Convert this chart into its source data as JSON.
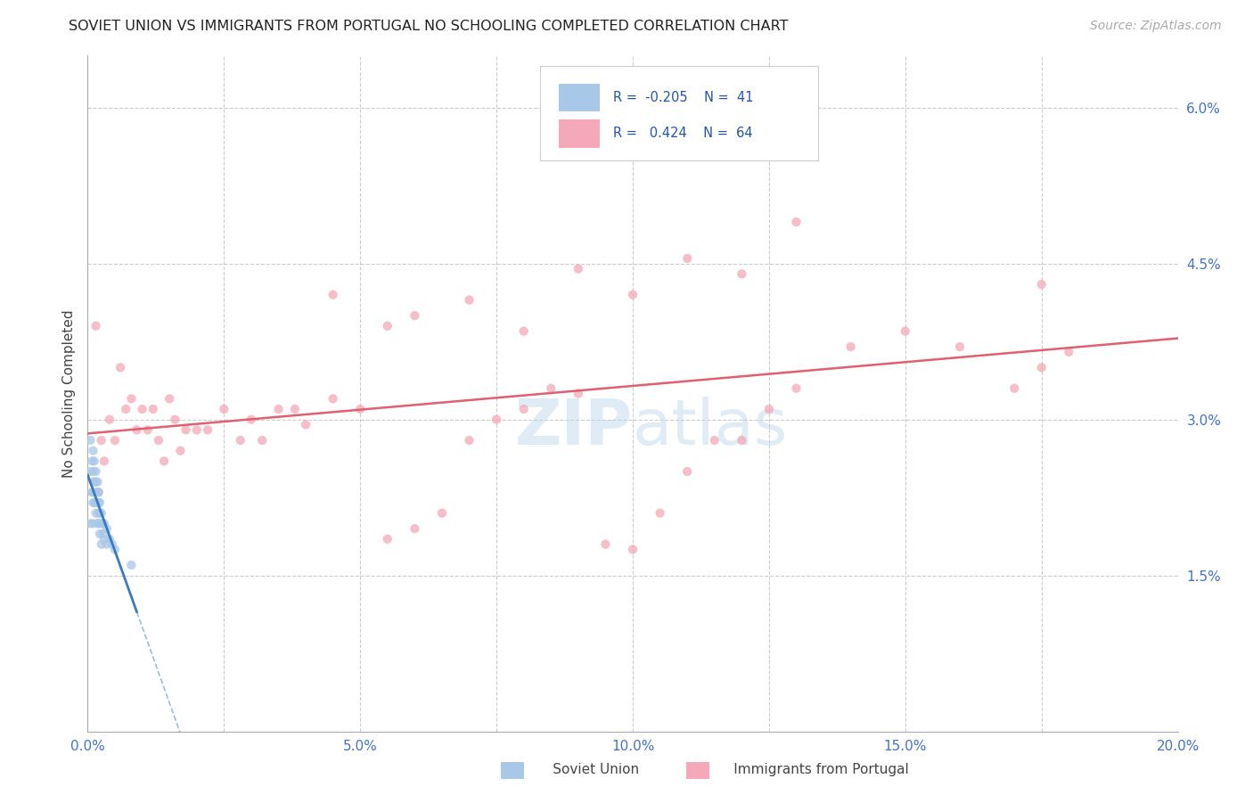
{
  "title": "SOVIET UNION VS IMMIGRANTS FROM PORTUGAL NO SCHOOLING COMPLETED CORRELATION CHART",
  "source": "Source: ZipAtlas.com",
  "ylabel": "No Schooling Completed",
  "xlim": [
    0.0,
    0.2
  ],
  "ylim": [
    0.0,
    0.065
  ],
  "legend_R1": "-0.205",
  "legend_N1": "41",
  "legend_R2": "0.424",
  "legend_N2": "64",
  "color_soviet": "#a8c8e8",
  "color_portugal": "#f4a8b8",
  "color_soviet_line": "#3a7abf",
  "color_portugal_line": "#e06070",
  "scatter_alpha": 0.75,
  "scatter_size": 55,
  "soviet_x": [
    0.0005,
    0.0005,
    0.0005,
    0.0008,
    0.0008,
    0.001,
    0.001,
    0.001,
    0.001,
    0.001,
    0.0012,
    0.0012,
    0.0012,
    0.0015,
    0.0015,
    0.0015,
    0.0015,
    0.0015,
    0.0018,
    0.0018,
    0.0018,
    0.002,
    0.002,
    0.002,
    0.002,
    0.0022,
    0.0022,
    0.0022,
    0.0025,
    0.0025,
    0.0025,
    0.0028,
    0.0028,
    0.003,
    0.003,
    0.0035,
    0.0035,
    0.004,
    0.0045,
    0.005,
    0.008
  ],
  "soviet_y": [
    0.028,
    0.025,
    0.02,
    0.026,
    0.023,
    0.027,
    0.025,
    0.023,
    0.022,
    0.02,
    0.026,
    0.024,
    0.022,
    0.025,
    0.024,
    0.023,
    0.022,
    0.021,
    0.024,
    0.022,
    0.02,
    0.023,
    0.022,
    0.021,
    0.02,
    0.022,
    0.021,
    0.019,
    0.021,
    0.02,
    0.018,
    0.02,
    0.019,
    0.02,
    0.0185,
    0.0195,
    0.018,
    0.0185,
    0.018,
    0.0175,
    0.016
  ],
  "portugal_x": [
    0.001,
    0.0015,
    0.002,
    0.0025,
    0.003,
    0.004,
    0.005,
    0.006,
    0.007,
    0.008,
    0.009,
    0.01,
    0.011,
    0.012,
    0.013,
    0.014,
    0.015,
    0.016,
    0.017,
    0.018,
    0.02,
    0.022,
    0.025,
    0.028,
    0.03,
    0.032,
    0.035,
    0.038,
    0.04,
    0.045,
    0.05,
    0.055,
    0.06,
    0.065,
    0.07,
    0.075,
    0.08,
    0.085,
    0.09,
    0.095,
    0.1,
    0.105,
    0.11,
    0.115,
    0.12,
    0.125,
    0.13,
    0.14,
    0.15,
    0.16,
    0.17,
    0.175,
    0.18,
    0.06,
    0.07,
    0.08,
    0.09,
    0.1,
    0.11,
    0.13,
    0.045,
    0.055,
    0.12,
    0.175
  ],
  "portugal_y": [
    0.024,
    0.039,
    0.023,
    0.028,
    0.026,
    0.03,
    0.028,
    0.035,
    0.031,
    0.032,
    0.029,
    0.031,
    0.029,
    0.031,
    0.028,
    0.026,
    0.032,
    0.03,
    0.027,
    0.029,
    0.029,
    0.029,
    0.031,
    0.028,
    0.03,
    0.028,
    0.031,
    0.031,
    0.0295,
    0.032,
    0.031,
    0.0185,
    0.0195,
    0.021,
    0.028,
    0.03,
    0.031,
    0.033,
    0.0325,
    0.018,
    0.0175,
    0.021,
    0.025,
    0.028,
    0.028,
    0.031,
    0.033,
    0.037,
    0.0385,
    0.037,
    0.033,
    0.035,
    0.0365,
    0.04,
    0.0415,
    0.0385,
    0.0445,
    0.042,
    0.0455,
    0.049,
    0.042,
    0.039,
    0.044,
    0.043
  ]
}
